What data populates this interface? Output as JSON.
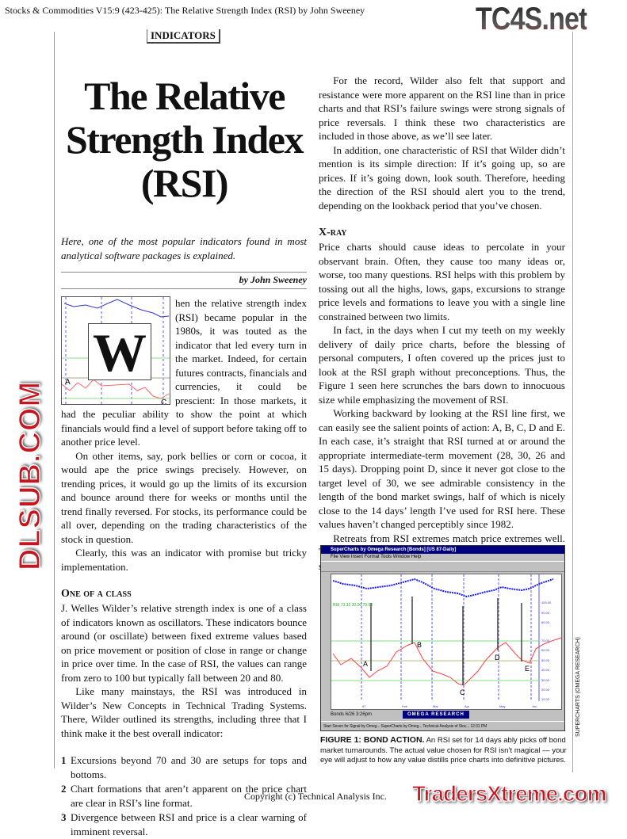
{
  "header": {
    "running_head": "Stocks & Commodities V15:9 (423-425): The Relative Strength Index (RSI) by John Sweeney",
    "logo": "TC4S.net"
  },
  "section_tag": "INDICATORS",
  "title": [
    "The Relative",
    "Strength Index",
    "(RSI)"
  ],
  "deck": "Here, one of the most popular indicators found in most analytical software packages is explained.",
  "byline": "by John Sweeney",
  "drop_cap": "W",
  "left": {
    "p1": "hen the relative strength index (RSI) became popular in the 1980s, it was touted as the indicator that led every turn in the market. Indeed, for certain futures contracts, financials and currencies, it could be prescient: In those markets, it had the peculiar ability to show the point at which financials would find a level of support before taking off to another price level.",
    "p2": "On other items, say, pork bellies or corn or cocoa, it would ape the price swings precisely. However, on trending prices, it would go up the limits of its excursion and bounce around there for weeks or months until the trend finally reversed. For stocks, its performance could be all over, depending on the trading characteristics of the stock in question.",
    "p3": "Clearly, this was an indicator with promise but tricky implementation.",
    "h_class": "One of a class",
    "p4": "J. Welles Wilder’s relative strength index is one of a class of indicators known as oscillators. These indicators bounce around (or oscillate) between fixed extreme values based on price movement or position of close in range or change in price over time. In the case of RSI, the values can range from zero to 100 but typically fall between 20 and 80.",
    "p5": "Like many mainstays, the RSI was introduced in Wilder’s New Concepts in Technical Trading Systems. There, Wilder outlined its strengths, including three that I think make it the best overall indicator:",
    "list": [
      {
        "n": "1",
        "t": "Excursions beyond 70 and 30 are setups for tops and bottoms."
      },
      {
        "n": "2",
        "t": "Chart formations that aren’t apparent on the price chart are clear in RSI’s line format."
      },
      {
        "n": "3",
        "t": "Divergence between RSI and price is a clear warning of imminent reversal."
      }
    ]
  },
  "right": {
    "p1": "For the record, Wilder also felt that support and resistance were more apparent on the RSI line than in price charts and that RSI’s failure swings were strong signals of price reversals. I think these two characteristics are included in those above, as we’ll see later.",
    "p2": "In addition, one characteristic of RSI that Wilder didn’t mention is its simple direction: If it’s going up, so are prices. If it’s going down, look south. Therefore, heeding the direction of the RSI should alert you to the trend, depending on the lookback period that you’ve chosen.",
    "h_xray": "X-ray",
    "p3": "Price charts should cause ideas to percolate in your observant brain. Often, they cause too many ideas or, worse, too many questions. RSI helps with this problem by tossing out all the highs, lows, gaps, excursions to strange price levels and formations to leave you with a single line constrained between two limits.",
    "p4": "In fact, in the days when I cut my teeth on my weekly delivery of daily price charts, before the blessing of personal computers, I often covered up the prices just to look at the RSI graph without preconceptions. Thus, the Figure 1 seen here scrunches the bars down to innocuous size while emphasizing the movement of RSI.",
    "p5": "Working backward by looking at the RSI line first, we can easily see the salient points of action: A, B, C, D and E. In each case, it’s straight that RSI turned at or around the appropriate intermediate-term movement (28, 30, 26 and 15 days). Dropping point D, since it never got close to the target level of 30, we see admirable consistency in the length of the bond market swings, half of which is nicely close to the 14 days’ length I’ve used for RSI here. These values haven’t changed perceptibly since 1982.",
    "p6": "Retreats from RSI extremes match price extremes well. The RSI X-ray gives a nice confirmation or even a clear signal that a change in direction has come."
  },
  "figure": {
    "window_title": "SuperCharts by Omega Research [Bonds] [US 87-Daily]",
    "menu": "File  View  Insert  Format  Tools  Window  Help",
    "rsi_legend": "RSI 73.32 30.00 70.00",
    "point_labels": [
      "A",
      "B",
      "C",
      "D",
      "E"
    ],
    "y_ticks": [
      "100.00",
      "90.00",
      "80.00",
      "70.00",
      "60.00",
      "50.00",
      "40.00",
      "30.00",
      "20.00",
      "10.00"
    ],
    "x_ticks": [
      "97",
      "Feb",
      "Mar",
      "Apr",
      "May",
      "Jun"
    ],
    "status": "Bonds   6/26   3:26pm",
    "omega": "OMEGA RESEARCH",
    "taskbar": "Start   Seven for Signal by Omeg...   SuperCharts by Omeg...   Technical Analysis of Stoc...   12:31 PM",
    "colors": {
      "price": "#1a1aff",
      "rsi": "#ff4040",
      "levels": "#80e080",
      "title_bar": "#000080"
    },
    "caption_label": "FIGURE 1: BOND ACTION.",
    "caption": " An RSI set for 14 days ably picks off bond market turnarounds. The actual value chosen for RSI isn’t magical — your eye will adjust to how any value distills price charts into definitive pictures.",
    "credit": "SUPERCHARTS (OMEGA RESEARCH)"
  },
  "watermarks": {
    "center": "DLSUB.COM",
    "bottom": "TradersXtreme.com"
  },
  "footer": "Copyright (c) Technical Analysis Inc."
}
